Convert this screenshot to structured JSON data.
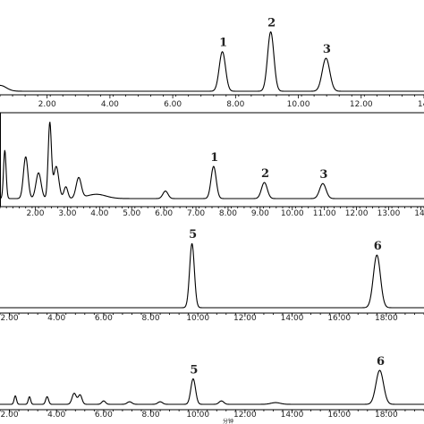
{
  "chart_data": [
    {
      "type": "line",
      "panel": "A",
      "xlim": [
        0.5,
        14.0
      ],
      "ylim": [
        0,
        100
      ],
      "tick_labels": [
        "2.00",
        "4.00",
        "6.00",
        "8.00",
        "10.00",
        "12.00",
        "14."
      ],
      "tick_values": [
        2,
        4,
        6,
        8,
        10,
        12,
        14
      ],
      "peaks": [
        {
          "label": "1",
          "rt": 7.58,
          "height": 54,
          "width": 0.1
        },
        {
          "label": "2",
          "rt": 9.12,
          "height": 81,
          "width": 0.1
        },
        {
          "label": "3",
          "rt": 10.88,
          "height": 45,
          "width": 0.12
        }
      ],
      "noise": [
        {
          "rt": 0.5,
          "height": 8,
          "width": 0.2
        }
      ]
    },
    {
      "type": "line",
      "panel": "B",
      "xlim": [
        0.9,
        14.1
      ],
      "ylim": [
        0,
        100
      ],
      "tick_labels": [
        "2.00",
        "3.00",
        "4.00",
        "5.00",
        "6.00",
        "7.00",
        "8.00",
        "9.00",
        "10.00",
        "11.00",
        "12.00",
        "13.00",
        "14."
      ],
      "tick_values": [
        2,
        3,
        4,
        5,
        6,
        7,
        8,
        9,
        10,
        11,
        12,
        13,
        14
      ],
      "peaks": [
        {
          "label": "1",
          "rt": 7.55,
          "height": 60,
          "width": 0.08
        },
        {
          "label": "2",
          "rt": 9.13,
          "height": 30,
          "width": 0.09
        },
        {
          "label": "3",
          "rt": 10.95,
          "height": 28,
          "width": 0.1
        }
      ],
      "noise": [
        {
          "rt": 1.05,
          "height": 90,
          "width": 0.04
        },
        {
          "rt": 1.7,
          "height": 78,
          "width": 0.07
        },
        {
          "rt": 2.1,
          "height": 48,
          "width": 0.08
        },
        {
          "rt": 2.45,
          "height": 140,
          "width": 0.05
        },
        {
          "rt": 2.65,
          "height": 60,
          "width": 0.08
        },
        {
          "rt": 2.95,
          "height": 22,
          "width": 0.06
        },
        {
          "rt": 3.35,
          "height": 38,
          "width": 0.08
        },
        {
          "rt": 3.9,
          "height": 8,
          "width": 0.3
        },
        {
          "rt": 6.05,
          "height": 14,
          "width": 0.08
        }
      ]
    },
    {
      "type": "line",
      "panel": "C",
      "xlim": [
        1.6,
        19.6
      ],
      "ylim": [
        0,
        100
      ],
      "tick_labels": [
        "2.00",
        "4.00",
        "6.00",
        "8.00",
        "10.00",
        "12.00",
        "14.00",
        "16.00",
        "18.00"
      ],
      "tick_values": [
        2,
        4,
        6,
        8,
        10,
        12,
        14,
        16,
        18
      ],
      "peaks": [
        {
          "label": "5",
          "rt": 9.75,
          "height": 78,
          "width": 0.1
        },
        {
          "label": "6",
          "rt": 17.6,
          "height": 64,
          "width": 0.15
        }
      ],
      "noise": []
    },
    {
      "type": "line",
      "panel": "D",
      "xlim": [
        1.6,
        19.6
      ],
      "ylim": [
        0,
        100
      ],
      "tick_labels": [
        "2.00",
        "4.00",
        "6.00",
        "8.00",
        "10.00",
        "12.00",
        "14.00",
        "16.00",
        "18.00"
      ],
      "tick_values": [
        2,
        4,
        6,
        8,
        10,
        12,
        14,
        16,
        18
      ],
      "x_caption": "分钟",
      "peaks": [
        {
          "label": "5",
          "rt": 9.8,
          "height": 30,
          "width": 0.1
        },
        {
          "label": "6",
          "rt": 17.72,
          "height": 40,
          "width": 0.16
        }
      ],
      "noise": [
        {
          "rt": 2.25,
          "height": 10,
          "width": 0.05
        },
        {
          "rt": 2.85,
          "height": 9,
          "width": 0.05
        },
        {
          "rt": 3.6,
          "height": 9,
          "width": 0.06
        },
        {
          "rt": 4.75,
          "height": 13,
          "width": 0.09
        },
        {
          "rt": 5.0,
          "height": 11,
          "width": 0.08
        },
        {
          "rt": 6.0,
          "height": 4,
          "width": 0.08
        },
        {
          "rt": 7.1,
          "height": 3,
          "width": 0.1
        },
        {
          "rt": 8.4,
          "height": 3,
          "width": 0.1
        },
        {
          "rt": 11.0,
          "height": 4,
          "width": 0.1
        },
        {
          "rt": 13.3,
          "height": 2,
          "width": 0.2
        }
      ]
    }
  ]
}
